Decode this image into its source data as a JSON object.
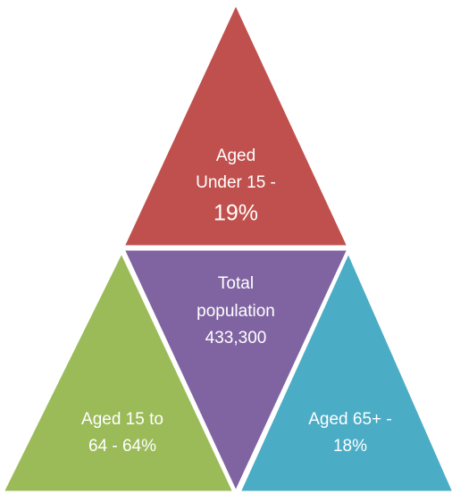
{
  "nodes": [
    {
      "lines": [
        "Aged",
        "Under 15 -",
        "19%"
      ]
    },
    {
      "lines": [
        "Total",
        "population",
        "433,300"
      ]
    },
    {
      "lines": [
        "Aged 15 to",
        "64 - 64%"
      ]
    },
    {
      "lines": [
        "Aged 65+ -",
        "18%"
      ]
    }
  ]
}
